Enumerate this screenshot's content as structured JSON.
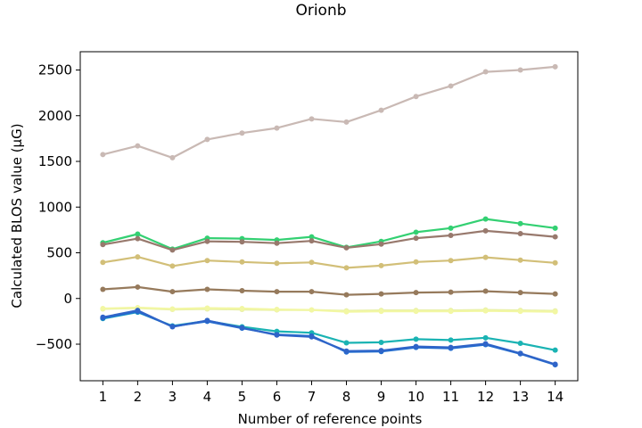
{
  "chart_data": {
    "type": "line",
    "title": "Orionb",
    "xlabel": "Number of reference points",
    "ylabel": "Calculated BLOS value (μG)",
    "x": [
      1,
      2,
      3,
      4,
      5,
      6,
      7,
      8,
      9,
      10,
      11,
      12,
      13,
      14
    ],
    "xlim": [
      0.35,
      14.65
    ],
    "ylim": [
      -900,
      2700
    ],
    "yticks": [
      -500,
      0,
      500,
      1000,
      1500,
      2000,
      2500
    ],
    "grid": false,
    "series": [
      {
        "color": "#c9b9b4",
        "values": [
          1575,
          1670,
          1540,
          1740,
          1810,
          1865,
          1965,
          1930,
          2060,
          2210,
          2325,
          2480,
          2500,
          2535
        ]
      },
      {
        "color": "#33d072",
        "values": [
          610,
          705,
          540,
          660,
          655,
          640,
          675,
          560,
          625,
          725,
          770,
          870,
          820,
          770
        ]
      },
      {
        "color": "#98796d",
        "values": [
          590,
          655,
          530,
          625,
          620,
          605,
          630,
          555,
          595,
          660,
          690,
          740,
          710,
          675
        ]
      },
      {
        "color": "#d2bf78",
        "values": [
          395,
          455,
          355,
          415,
          400,
          385,
          395,
          335,
          360,
          400,
          415,
          450,
          420,
          390
        ]
      },
      {
        "color": "#967a5c",
        "values": [
          100,
          125,
          75,
          100,
          85,
          75,
          75,
          40,
          50,
          65,
          70,
          80,
          65,
          50
        ]
      },
      {
        "color": "#e7efa8",
        "values": [
          -115,
          -105,
          -120,
          -115,
          -120,
          -125,
          -125,
          -135,
          -130,
          -130,
          -130,
          -125,
          -130,
          -135
        ]
      },
      {
        "color": "#f2f7a3",
        "values": [
          -110,
          -100,
          -115,
          -105,
          -110,
          -120,
          -125,
          -145,
          -140,
          -140,
          -140,
          -135,
          -140,
          -145
        ]
      },
      {
        "color": "#1ab3b3",
        "values": [
          -220,
          -150,
          -300,
          -245,
          -310,
          -360,
          -375,
          -485,
          -480,
          -445,
          -455,
          -430,
          -490,
          -565
        ]
      },
      {
        "color": "#1f6fd1",
        "values": [
          -215,
          -145,
          -305,
          -250,
          -325,
          -395,
          -410,
          -585,
          -580,
          -535,
          -545,
          -505,
          -605,
          -725
        ]
      },
      {
        "color": "#2f64c8",
        "values": [
          -205,
          -130,
          -310,
          -240,
          -320,
          -400,
          -420,
          -575,
          -570,
          -525,
          -535,
          -495,
          -600,
          -720
        ]
      }
    ]
  }
}
